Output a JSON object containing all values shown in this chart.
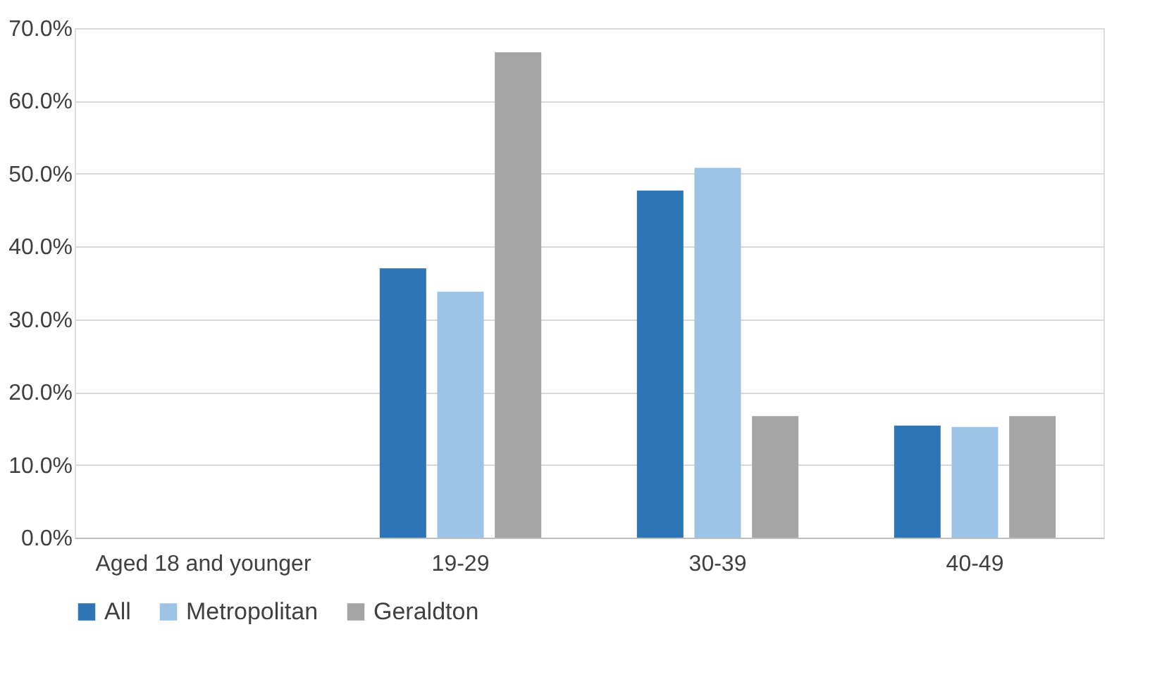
{
  "chart_data": {
    "type": "bar",
    "categories": [
      "Aged 18 and younger",
      "19-29",
      "30-39",
      "40-49"
    ],
    "series": [
      {
        "name": "All",
        "color": "#2e75b6",
        "values": [
          0,
          37.0,
          47.7,
          15.4
        ]
      },
      {
        "name": "Metropolitan",
        "color": "#9dc3e6",
        "values": [
          0,
          33.8,
          50.8,
          15.2
        ]
      },
      {
        "name": "Geraldton",
        "color": "#a5a5a5",
        "values": [
          0,
          66.7,
          16.7,
          16.7
        ]
      }
    ],
    "ylim": [
      0,
      70
    ],
    "yticks": [
      {
        "value": 0,
        "label": "0.0%"
      },
      {
        "value": 10,
        "label": "10.0%"
      },
      {
        "value": 20,
        "label": "20.0%"
      },
      {
        "value": 30,
        "label": "30.0%"
      },
      {
        "value": 40,
        "label": "40.0%"
      },
      {
        "value": 50,
        "label": "50.0%"
      },
      {
        "value": 60,
        "label": "60.0%"
      },
      {
        "value": 70,
        "label": "70.0%"
      }
    ],
    "grid": "y",
    "legend": "bottom"
  }
}
